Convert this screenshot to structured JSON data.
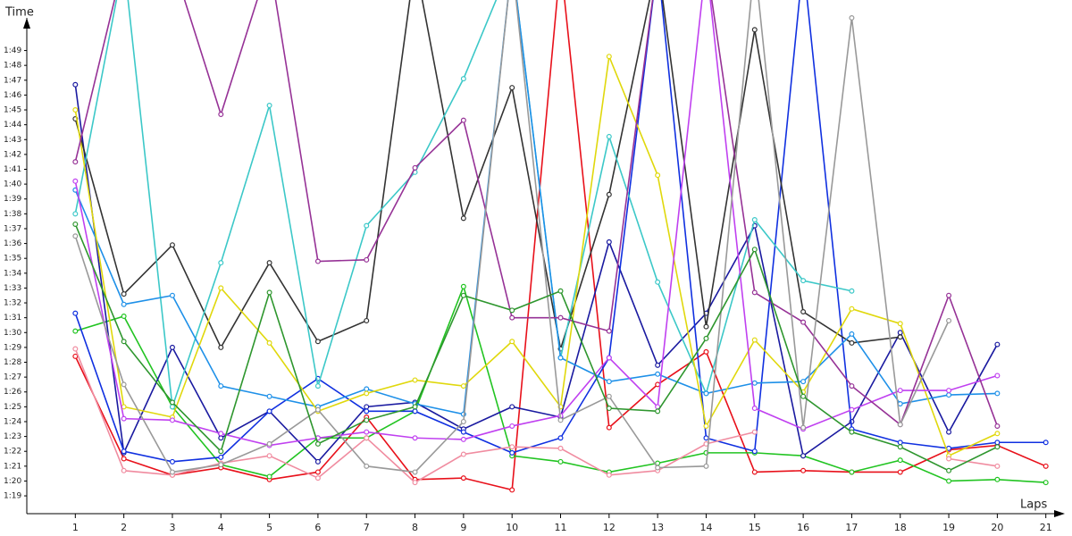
{
  "chart_data": {
    "type": "line",
    "y_label": "Time",
    "x_label": "Laps",
    "x": [
      1,
      2,
      3,
      4,
      5,
      6,
      7,
      8,
      9,
      10,
      11,
      12,
      13,
      14,
      15,
      16,
      17,
      18,
      19,
      20,
      21
    ],
    "xlim": [
      0,
      21.3
    ],
    "ylim": [
      77.8,
      111.2
    ],
    "xticks": [
      1,
      2,
      3,
      4,
      5,
      6,
      7,
      8,
      9,
      10,
      11,
      12,
      13,
      14,
      15,
      16,
      17,
      18,
      19,
      20,
      21
    ],
    "yticks": [
      {
        "value": 79,
        "label": "1:19"
      },
      {
        "value": 80,
        "label": "1:20"
      },
      {
        "value": 81,
        "label": "1:21"
      },
      {
        "value": 82,
        "label": "1:22"
      },
      {
        "value": 83,
        "label": "1:23"
      },
      {
        "value": 84,
        "label": "1:24"
      },
      {
        "value": 85,
        "label": "1:25"
      },
      {
        "value": 86,
        "label": "1:26"
      },
      {
        "value": 87,
        "label": "1:27"
      },
      {
        "value": 88,
        "label": "1:28"
      },
      {
        "value": 89,
        "label": "1:29"
      },
      {
        "value": 90,
        "label": "1:30"
      },
      {
        "value": 91,
        "label": "1:31"
      },
      {
        "value": 92,
        "label": "1:32"
      },
      {
        "value": 93,
        "label": "1:33"
      },
      {
        "value": 94,
        "label": "1:34"
      },
      {
        "value": 95,
        "label": "1:35"
      },
      {
        "value": 96,
        "label": "1:36"
      },
      {
        "value": 97,
        "label": "1:37"
      },
      {
        "value": 98,
        "label": "1:38"
      },
      {
        "value": 99,
        "label": "1:39"
      },
      {
        "value": 100,
        "label": "1:40"
      },
      {
        "value": 101,
        "label": "1:41"
      },
      {
        "value": 102,
        "label": "1:42"
      },
      {
        "value": 103,
        "label": "1:43"
      },
      {
        "value": 104,
        "label": "1:44"
      },
      {
        "value": 105,
        "label": "1:45"
      },
      {
        "value": 106,
        "label": "1:46"
      },
      {
        "value": 107,
        "label": "1:47"
      },
      {
        "value": 108,
        "label": "1:48"
      },
      {
        "value": 109,
        "label": "1:49"
      }
    ],
    "series": [
      {
        "color": "#e8101a",
        "values": [
          88.4,
          81.5,
          80.4,
          80.9,
          80.1,
          80.6,
          84.3,
          80.1,
          80.2,
          79.4,
          115,
          83.6,
          86.5,
          88.7,
          80.6,
          80.7,
          80.6,
          80.6,
          82.1,
          82.4,
          81.0
        ]
      },
      {
        "color": "#22c422",
        "values": [
          90.1,
          91.1,
          85.0,
          81.1,
          80.3,
          82.9,
          82.9,
          84.7,
          93.1,
          81.7,
          81.3,
          80.6,
          81.2,
          81.9,
          81.9,
          81.7,
          80.6,
          81.4,
          80.0,
          80.1,
          79.9
        ]
      },
      {
        "color": "#1a1aa0",
        "values": [
          106.7,
          81.9,
          89.0,
          82.9,
          84.7,
          81.3,
          85.0,
          85.3,
          83.5,
          85.0,
          84.3,
          96.1,
          87.8,
          91.3,
          97.2,
          81.7,
          84.0,
          90.0,
          83.3,
          89.2,
          null
        ]
      },
      {
        "color": "#1030e0",
        "values": [
          91.3,
          82.0,
          81.3,
          81.6,
          84.7,
          86.9,
          84.7,
          84.7,
          83.3,
          81.9,
          82.9,
          88.3,
          115,
          82.9,
          82.0,
          115,
          83.5,
          82.6,
          82.2,
          82.6,
          82.6
        ]
      },
      {
        "color": "#333333",
        "values": [
          104.4,
          92.6,
          95.9,
          89.0,
          94.7,
          89.4,
          90.8,
          115,
          97.7,
          106.5,
          88.9,
          99.3,
          115,
          90.4,
          110.4,
          91.4,
          89.3,
          89.7,
          null,
          null,
          null
        ]
      },
      {
        "color": "#3cc8c8",
        "values": [
          98.0,
          115,
          85.0,
          94.7,
          105.3,
          86.4,
          97.2,
          100.8,
          107.1,
          115,
          88.3,
          103.2,
          93.4,
          85.9,
          97.6,
          93.5,
          92.8,
          null,
          null,
          null,
          null
        ]
      },
      {
        "color": "#1e90e8",
        "values": [
          99.6,
          91.9,
          92.5,
          86.4,
          85.7,
          85.0,
          86.2,
          85.2,
          84.5,
          115,
          88.3,
          86.7,
          87.2,
          85.9,
          86.6,
          86.7,
          89.9,
          85.2,
          85.8,
          85.9,
          null
        ]
      },
      {
        "color": "#e0d80c",
        "values": [
          105.0,
          85.0,
          84.3,
          93.0,
          89.3,
          84.7,
          85.9,
          86.8,
          86.4,
          89.4,
          85.0,
          108.6,
          100.6,
          83.7,
          89.5,
          86.0,
          91.6,
          90.6,
          81.7,
          83.2,
          null
        ]
      },
      {
        "color": "#c040f0",
        "values": [
          100.2,
          84.2,
          84.1,
          83.2,
          82.4,
          82.9,
          83.3,
          82.9,
          82.8,
          83.7,
          84.4,
          88.3,
          85.0,
          115,
          84.9,
          83.5,
          84.8,
          86.1,
          86.1,
          87.1,
          null
        ]
      },
      {
        "color": "#963296",
        "values": [
          101.5,
          115,
          115,
          104.7,
          115,
          94.8,
          94.9,
          101.1,
          104.3,
          91.0,
          91.0,
          90.1,
          115,
          115,
          92.7,
          90.7,
          86.4,
          83.8,
          92.5,
          83.7,
          null
        ]
      },
      {
        "color": "#f08ca0",
        "values": [
          88.9,
          80.7,
          80.4,
          81.2,
          81.7,
          80.2,
          82.9,
          79.9,
          81.8,
          82.3,
          82.2,
          80.4,
          80.7,
          82.5,
          83.3,
          null,
          null,
          null,
          81.5,
          81.0,
          null
        ]
      },
      {
        "color": "#999999",
        "values": [
          96.5,
          86.5,
          80.6,
          81.1,
          82.5,
          84.8,
          81.0,
          80.6,
          84.0,
          115,
          84.1,
          85.7,
          80.9,
          81.0,
          115,
          83.6,
          111.2,
          83.8,
          90.8,
          null,
          null
        ]
      },
      {
        "color": "#2e962e",
        "values": [
          97.3,
          89.4,
          85.3,
          82.0,
          92.7,
          82.5,
          84.1,
          85.0,
          92.5,
          91.5,
          92.8,
          84.9,
          84.7,
          89.6,
          95.6,
          85.7,
          83.3,
          82.3,
          80.7,
          82.3,
          null
        ]
      }
    ]
  }
}
